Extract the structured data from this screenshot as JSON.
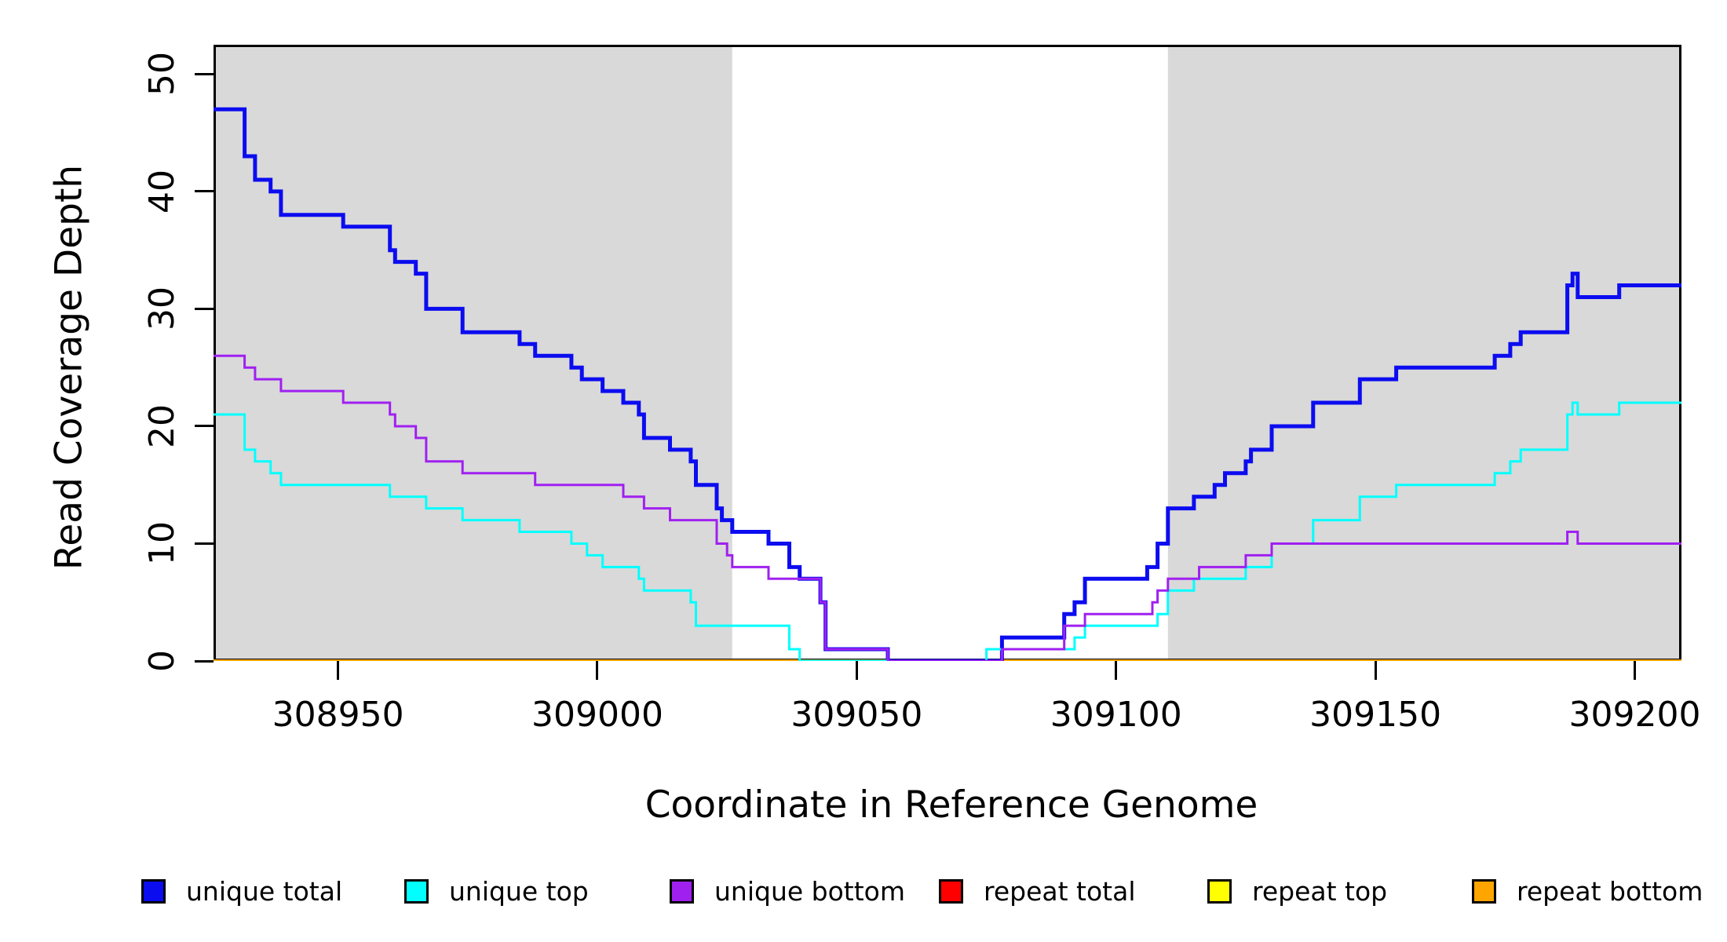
{
  "axes": {
    "x_label": "Coordinate in Reference Genome",
    "y_label": "Read Coverage Depth",
    "x_ticks": [
      308950,
      309000,
      309050,
      309100,
      309150,
      309200
    ],
    "y_ticks": [
      0,
      10,
      20,
      30,
      40,
      50
    ]
  },
  "legend": {
    "items": [
      {
        "label": "unique total",
        "color": "#0c0cf0"
      },
      {
        "label": "unique top",
        "color": "#00ffff"
      },
      {
        "label": "unique bottom",
        "color": "#a020f0"
      },
      {
        "label": "repeat total",
        "color": "#ff0000"
      },
      {
        "label": "repeat top",
        "color": "#ffff00"
      },
      {
        "label": "repeat bottom",
        "color": "#ffa500"
      }
    ]
  },
  "chart_data": {
    "type": "line",
    "subtype": "step",
    "title": "",
    "xlabel": "Coordinate in Reference Genome",
    "ylabel": "Read Coverage Depth",
    "xlim": [
      308926,
      309209
    ],
    "ylim": [
      0,
      52.5
    ],
    "x_ticks": [
      308950,
      309000,
      309050,
      309100,
      309150,
      309200
    ],
    "y_ticks": [
      0,
      10,
      20,
      30,
      40,
      50
    ],
    "grid": false,
    "legend_position": "bottom",
    "plot_background": "#ffffff",
    "shading_color": "#d9d9d9",
    "shaded_regions": [
      [
        308926,
        309026
      ],
      [
        309110,
        309209
      ]
    ],
    "series": [
      {
        "name": "repeat total",
        "color": "#ff0000",
        "width": 3,
        "steps": [
          [
            308926,
            0
          ]
        ]
      },
      {
        "name": "repeat top",
        "color": "#ffff00",
        "width": 3,
        "steps": [
          [
            308926,
            0
          ]
        ]
      },
      {
        "name": "repeat bottom",
        "color": "#ffa500",
        "width": 4,
        "steps": [
          [
            308926,
            0
          ]
        ]
      },
      {
        "name": "unique total",
        "color": "#0c0cf0",
        "width": 5,
        "steps": [
          [
            308926,
            47
          ],
          [
            308932,
            43
          ],
          [
            308934,
            41
          ],
          [
            308937,
            40
          ],
          [
            308939,
            38
          ],
          [
            308951,
            37
          ],
          [
            308960,
            35
          ],
          [
            308961,
            34
          ],
          [
            308965,
            33
          ],
          [
            308967,
            30
          ],
          [
            308974,
            28
          ],
          [
            308985,
            27
          ],
          [
            308988,
            26
          ],
          [
            308995,
            25
          ],
          [
            308997,
            24
          ],
          [
            309001,
            23
          ],
          [
            309005,
            22
          ],
          [
            309008,
            21
          ],
          [
            309009,
            19
          ],
          [
            309014,
            18
          ],
          [
            309018,
            17
          ],
          [
            309019,
            15
          ],
          [
            309023,
            13
          ],
          [
            309024,
            12
          ],
          [
            309026,
            11
          ],
          [
            309033,
            10
          ],
          [
            309037,
            8
          ],
          [
            309039,
            7
          ],
          [
            309043,
            5
          ],
          [
            309044,
            1
          ],
          [
            309056,
            0
          ],
          [
            309078,
            2
          ],
          [
            309090,
            4
          ],
          [
            309092,
            5
          ],
          [
            309094,
            7
          ],
          [
            309106,
            8
          ],
          [
            309108,
            10
          ],
          [
            309110,
            13
          ],
          [
            309115,
            14
          ],
          [
            309119,
            15
          ],
          [
            309121,
            16
          ],
          [
            309125,
            17
          ],
          [
            309126,
            18
          ],
          [
            309130,
            20
          ],
          [
            309138,
            22
          ],
          [
            309147,
            24
          ],
          [
            309154,
            25
          ],
          [
            309173,
            26
          ],
          [
            309176,
            27
          ],
          [
            309178,
            28
          ],
          [
            309187,
            32
          ],
          [
            309188,
            33
          ],
          [
            309189,
            31
          ],
          [
            309197,
            32
          ]
        ]
      },
      {
        "name": "unique top",
        "color": "#00ffff",
        "width": 3,
        "steps": [
          [
            308926,
            21
          ],
          [
            308932,
            18
          ],
          [
            308934,
            17
          ],
          [
            308937,
            16
          ],
          [
            308939,
            15
          ],
          [
            308960,
            14
          ],
          [
            308967,
            13
          ],
          [
            308974,
            12
          ],
          [
            308985,
            11
          ],
          [
            308995,
            10
          ],
          [
            308998,
            9
          ],
          [
            309001,
            8
          ],
          [
            309008,
            7
          ],
          [
            309009,
            6
          ],
          [
            309018,
            5
          ],
          [
            309019,
            3
          ],
          [
            309037,
            1
          ],
          [
            309039,
            0
          ],
          [
            309075,
            1
          ],
          [
            309092,
            2
          ],
          [
            309094,
            3
          ],
          [
            309108,
            4
          ],
          [
            309110,
            6
          ],
          [
            309115,
            7
          ],
          [
            309125,
            8
          ],
          [
            309130,
            10
          ],
          [
            309138,
            12
          ],
          [
            309147,
            14
          ],
          [
            309154,
            15
          ],
          [
            309173,
            16
          ],
          [
            309176,
            17
          ],
          [
            309178,
            18
          ],
          [
            309187,
            21
          ],
          [
            309188,
            22
          ],
          [
            309189,
            21
          ],
          [
            309197,
            22
          ]
        ]
      },
      {
        "name": "unique bottom",
        "color": "#a020f0",
        "width": 3,
        "steps": [
          [
            308926,
            26
          ],
          [
            308932,
            25
          ],
          [
            308934,
            24
          ],
          [
            308939,
            23
          ],
          [
            308951,
            22
          ],
          [
            308960,
            21
          ],
          [
            308961,
            20
          ],
          [
            308965,
            19
          ],
          [
            308967,
            17
          ],
          [
            308974,
            16
          ],
          [
            308988,
            15
          ],
          [
            309005,
            14
          ],
          [
            309009,
            13
          ],
          [
            309014,
            12
          ],
          [
            309023,
            10
          ],
          [
            309025,
            9
          ],
          [
            309026,
            8
          ],
          [
            309033,
            7
          ],
          [
            309043,
            5
          ],
          [
            309044,
            1
          ],
          [
            309056,
            0
          ],
          [
            309078,
            1
          ],
          [
            309090,
            3
          ],
          [
            309094,
            4
          ],
          [
            309107,
            5
          ],
          [
            309108,
            6
          ],
          [
            309110,
            7
          ],
          [
            309116,
            8
          ],
          [
            309125,
            9
          ],
          [
            309130,
            10
          ],
          [
            309187,
            11
          ],
          [
            309189,
            10
          ]
        ]
      }
    ]
  }
}
